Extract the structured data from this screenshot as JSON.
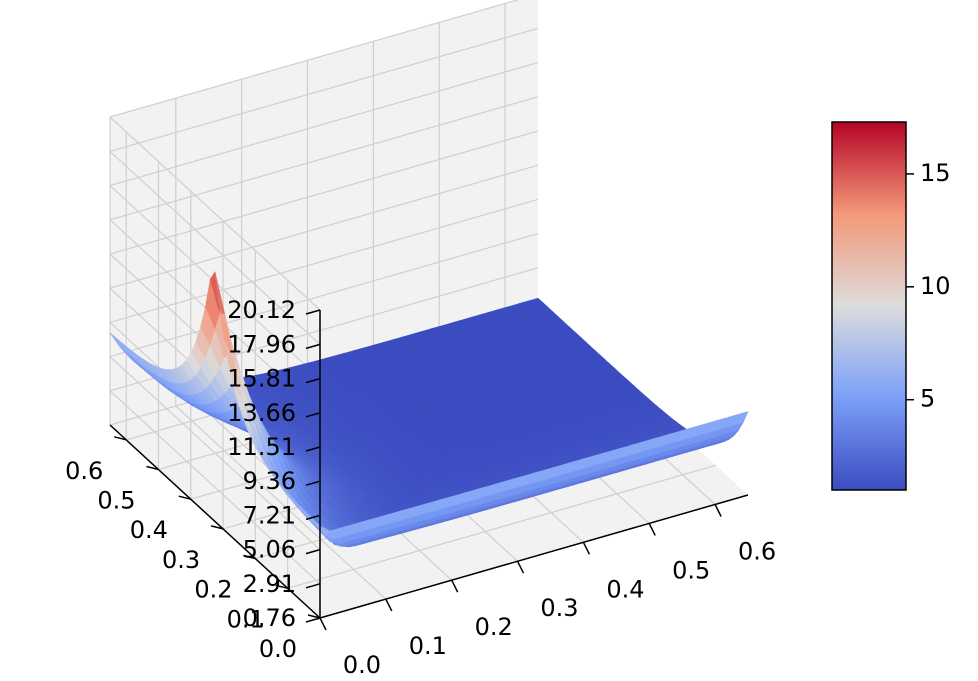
{
  "chart_data": {
    "type": "surface3d",
    "title": "",
    "xlabel": "",
    "ylabel": "",
    "zlabel": "",
    "grid": true,
    "colormap": "coolwarm",
    "x_range": [
      0,
      0.65
    ],
    "y_range": [
      0,
      0.65
    ],
    "z_range": [
      0.76,
      20.12
    ],
    "x_ticks": [
      "0.0",
      "0.1",
      "0.2",
      "0.3",
      "0.4",
      "0.5",
      "0.6"
    ],
    "y_ticks": [
      "0.0",
      "0.1",
      "0.2",
      "0.3",
      "0.4",
      "0.5",
      "0.6"
    ],
    "z_ticks": [
      "0.76",
      "2.91",
      "5.06",
      "7.21",
      "9.36",
      "11.51",
      "13.66",
      "15.81",
      "17.96",
      "20.12"
    ],
    "colorbar": {
      "range": [
        1.0,
        17.3
      ],
      "ticks": [
        "5",
        "10",
        "15"
      ]
    },
    "surface": {
      "description_values": {
        "peak_value": 17.3,
        "peak_at_xy": [
          0.0,
          0.33
        ],
        "edge_value_along_x0": 6.5,
        "edge_value_along_y0": 6.0,
        "interior_min_value": 1.0
      }
    },
    "colors": {
      "cool": "#3b4cc0",
      "neutral": "#dddddd",
      "warm": "#b40426",
      "pane": "#f2f2f2",
      "grid": "#cfcfcf"
    }
  }
}
